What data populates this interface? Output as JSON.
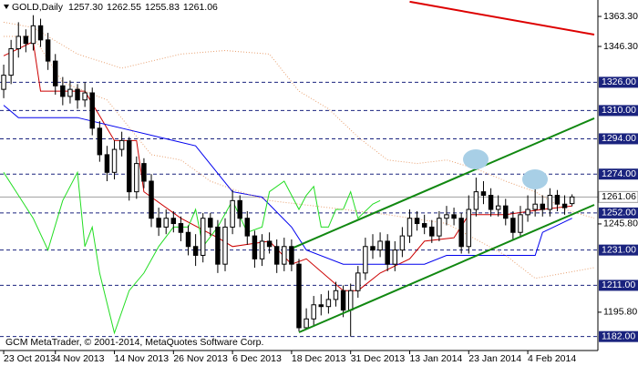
{
  "chart_data": {
    "type": "candlestick",
    "title": "GOLD,Daily",
    "header_labels": [
      "1257.30",
      "1262.55",
      "1255.83",
      "1261.06"
    ],
    "footer": "GCM MetaTrader, © 2001-2014, MetaQuotes Software Corp.",
    "categories": [
      "23 Oct 2013",
      null,
      null,
      null,
      null,
      null,
      null,
      "4 Nov 2013",
      null,
      null,
      null,
      null,
      null,
      null,
      null,
      "14 Nov 2013",
      null,
      null,
      null,
      null,
      null,
      null,
      null,
      "26 Nov 2013",
      null,
      null,
      null,
      null,
      null,
      null,
      null,
      "6 Dec 2013",
      null,
      null,
      null,
      null,
      null,
      null,
      null,
      "18 Dec 2013",
      null,
      null,
      null,
      null,
      null,
      null,
      null,
      "31 Dec 2013",
      null,
      null,
      null,
      null,
      null,
      null,
      null,
      "13 Jan 2014",
      null,
      null,
      null,
      null,
      null,
      null,
      null,
      "23 Jan 2014",
      null,
      null,
      null,
      null,
      null,
      null,
      null,
      "4 Feb 2014",
      null,
      null,
      null,
      null,
      null,
      null
    ],
    "open": [
      1322,
      1330,
      1345,
      1352,
      1348,
      1358,
      1350,
      1338,
      1324,
      1318,
      1322,
      1316,
      1320,
      1300,
      1285,
      1275,
      1288,
      1293,
      1264,
      1280,
      1270,
      1249,
      1244,
      1249,
      1246,
      1241,
      1233,
      1228,
      1249,
      1244,
      1223,
      1244,
      1259,
      1249,
      1239,
      1226,
      1236,
      1233,
      1223,
      1233,
      1223,
      1187,
      1192,
      1200,
      1199,
      1203,
      1208,
      1197,
      1208,
      1218,
      1233,
      1231,
      1236,
      1223,
      1231,
      1239,
      1249,
      1246,
      1244,
      1239,
      1249,
      1251,
      1249,
      1233,
      1254,
      1264,
      1262,
      1254,
      1256,
      1249,
      1241,
      1251,
      1254,
      1257,
      1254,
      1262,
      1257,
      1257.3
    ],
    "high": [
      1336,
      1350,
      1360,
      1356,
      1364,
      1362,
      1354,
      1342,
      1329,
      1327,
      1325,
      1326,
      1323,
      1304,
      1290,
      1293,
      1298,
      1295,
      1284,
      1283,
      1274,
      1255,
      1254,
      1253,
      1250,
      1245,
      1240,
      1252,
      1252,
      1248,
      1249,
      1265,
      1262,
      1253,
      1242,
      1240,
      1241,
      1237,
      1238,
      1237,
      1226,
      1198,
      1205,
      1206,
      1208,
      1213,
      1211,
      1212,
      1222,
      1238,
      1240,
      1241,
      1240,
      1236,
      1244,
      1254,
      1253,
      1251,
      1248,
      1253,
      1256,
      1255,
      1252,
      1262,
      1272,
      1270,
      1266,
      1262,
      1260,
      1253,
      1256,
      1262,
      1266,
      1262,
      1266,
      1265,
      1262,
      1262.55
    ],
    "low": [
      1317,
      1325,
      1340,
      1343,
      1344,
      1346,
      1333,
      1319,
      1313,
      1314,
      1311,
      1312,
      1296,
      1281,
      1270,
      1271,
      1284,
      1259,
      1260,
      1266,
      1244,
      1239,
      1240,
      1241,
      1236,
      1228,
      1222,
      1224,
      1239,
      1218,
      1219,
      1240,
      1244,
      1234,
      1221,
      1222,
      1229,
      1218,
      1219,
      1219,
      1185,
      1186,
      1188,
      1194,
      1195,
      1199,
      1193,
      1182,
      1204,
      1214,
      1226,
      1227,
      1219,
      1219,
      1227,
      1235,
      1242,
      1240,
      1235,
      1236,
      1245,
      1245,
      1229,
      1229,
      1250,
      1257,
      1250,
      1250,
      1245,
      1237,
      1238,
      1247,
      1250,
      1250,
      1250,
      1253,
      1251,
      1255.83
    ],
    "close": [
      1330,
      1345,
      1352,
      1348,
      1358,
      1350,
      1338,
      1324,
      1318,
      1322,
      1316,
      1320,
      1300,
      1285,
      1275,
      1288,
      1293,
      1264,
      1280,
      1270,
      1249,
      1244,
      1249,
      1246,
      1241,
      1233,
      1228,
      1249,
      1244,
      1223,
      1244,
      1259,
      1249,
      1239,
      1226,
      1236,
      1233,
      1223,
      1233,
      1223,
      1187,
      1192,
      1200,
      1199,
      1203,
      1208,
      1197,
      1208,
      1218,
      1233,
      1231,
      1236,
      1223,
      1231,
      1239,
      1249,
      1246,
      1244,
      1239,
      1249,
      1251,
      1249,
      1233,
      1254,
      1264,
      1262,
      1254,
      1256,
      1249,
      1241,
      1251,
      1254,
      1257,
      1254,
      1262,
      1257,
      1255,
      1261.06
    ],
    "series": [
      {
        "color": "#cc0000",
        "style": "solid",
        "x": [
          0,
          4,
          5,
          8,
          11,
          15,
          18,
          19,
          24,
          29,
          31,
          36,
          39,
          41,
          46,
          48,
          51,
          55,
          57,
          61,
          63,
          68,
          73,
          77
        ],
        "values": [
          1341,
          1349,
          1321,
          1321,
          1321,
          1293,
          1293,
          1264,
          1249,
          1238,
          1233,
          1236,
          1223,
          1226,
          1208,
          1208,
          1218,
          1226,
          1236,
          1238,
          1251,
          1251,
          1254,
          1256
        ]
      },
      {
        "color": "#0000ee",
        "style": "solid",
        "x": [
          0,
          2,
          10,
          16,
          21,
          23,
          26,
          31,
          35,
          39,
          41,
          46,
          57,
          60,
          63,
          72,
          73,
          77
        ],
        "values": [
          1313,
          1306,
          1306,
          1300,
          1295,
          1293,
          1290,
          1264,
          1261,
          1244,
          1231,
          1223,
          1223,
          1228,
          1228,
          1228,
          1241,
          1249
        ]
      },
      {
        "color": "#22dd22",
        "style": "solid",
        "x": [
          0,
          2,
          4,
          6,
          8,
          10,
          11,
          12,
          13,
          15,
          17,
          19,
          21,
          23,
          25,
          26,
          27,
          29,
          31,
          33,
          35,
          36,
          38,
          40,
          41,
          42,
          43,
          44,
          45,
          46,
          47,
          48,
          50,
          51
        ],
        "values": [
          1275,
          1262,
          1249,
          1231,
          1259,
          1275,
          1233,
          1244,
          1218,
          1184,
          1208,
          1218,
          1233,
          1244,
          1244,
          1254,
          1233,
          1244,
          1259,
          1241,
          1244,
          1264,
          1270,
          1254,
          1262,
          1267,
          1244,
          1244,
          1254,
          1254,
          1264,
          1249,
          1257,
          1259
        ]
      },
      {
        "color": "#e8a070",
        "style": "dotted",
        "x": [
          0,
          4,
          10,
          16,
          24,
          30,
          36,
          40,
          44,
          48,
          52,
          56,
          60,
          64,
          68,
          72,
          76,
          80
        ],
        "values": [
          1360,
          1357,
          1342,
          1334,
          1342,
          1344,
          1342,
          1321,
          1311,
          1295,
          1282,
          1280,
          1282,
          1277,
          1270,
          1264,
          1254,
          1249
        ]
      },
      {
        "color": "#e8a070",
        "style": "dotted",
        "x": [
          0,
          4,
          8,
          14,
          20,
          24,
          28,
          32,
          36,
          40,
          46,
          52,
          60,
          68,
          72,
          76,
          80
        ],
        "values": [
          1352,
          1352,
          1326,
          1316,
          1285,
          1282,
          1270,
          1264,
          1259,
          1257,
          1254,
          1251,
          1246,
          1228,
          1215,
          1218,
          1221
        ]
      }
    ],
    "trendlines": [
      {
        "color": "#118811",
        "x": [
          39.3,
          80
        ],
        "values": [
          1232.4,
          1305.6
        ]
      },
      {
        "color": "#118811",
        "x": [
          40,
          80
        ],
        "values": [
          1184.4,
          1256.6
        ]
      },
      {
        "color": "#dd0000",
        "x": [
          55,
          80
        ],
        "values": [
          1371.6,
          1353
        ]
      }
    ],
    "ylim": [
      1174.1,
      1372.6
    ],
    "yticks": [
      {
        "value": 1363.3,
        "label": "1363.30"
      },
      {
        "value": 1346.3,
        "label": "1346.30"
      },
      {
        "value": 1245.8,
        "label": "1245.80"
      },
      {
        "value": 1195.8,
        "label": "1195.80"
      }
    ],
    "levels": [
      {
        "value": 1326,
        "label": "1326.00"
      },
      {
        "value": 1310,
        "label": "1310.00"
      },
      {
        "value": 1294,
        "label": "1294.00"
      },
      {
        "value": 1274,
        "label": "1274.00"
      },
      {
        "value": 1252,
        "label": "1252.00"
      },
      {
        "value": 1231,
        "label": "1231.00"
      },
      {
        "value": 1211,
        "label": "1211.00"
      },
      {
        "value": 1182,
        "label": "1182.00"
      }
    ],
    "level_color": "#1a237e",
    "last_price": 1261.06,
    "last_price_color": "#9e9e9e"
  }
}
